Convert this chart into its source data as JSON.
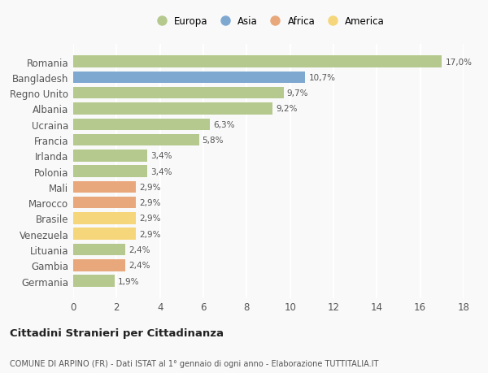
{
  "countries": [
    "Romania",
    "Bangladesh",
    "Regno Unito",
    "Albania",
    "Ucraina",
    "Francia",
    "Irlanda",
    "Polonia",
    "Mali",
    "Marocco",
    "Brasile",
    "Venezuela",
    "Lituania",
    "Gambia",
    "Germania"
  ],
  "values": [
    17.0,
    10.7,
    9.7,
    9.2,
    6.3,
    5.8,
    3.4,
    3.4,
    2.9,
    2.9,
    2.9,
    2.9,
    2.4,
    2.4,
    1.9
  ],
  "labels": [
    "17,0%",
    "10,7%",
    "9,7%",
    "9,2%",
    "6,3%",
    "5,8%",
    "3,4%",
    "3,4%",
    "2,9%",
    "2,9%",
    "2,9%",
    "2,9%",
    "2,4%",
    "2,4%",
    "1,9%"
  ],
  "regions": [
    "Europa",
    "Asia",
    "Europa",
    "Europa",
    "Europa",
    "Europa",
    "Europa",
    "Europa",
    "Africa",
    "Africa",
    "America",
    "America",
    "Europa",
    "Africa",
    "Europa"
  ],
  "colors": {
    "Europa": "#b5c98e",
    "Asia": "#7fa8d1",
    "Africa": "#e8a87c",
    "America": "#f5d67a"
  },
  "legend_order": [
    "Europa",
    "Asia",
    "Africa",
    "America"
  ],
  "legend_colors": [
    "#b5c98e",
    "#7fa8d1",
    "#e8a87c",
    "#f5d67a"
  ],
  "title": "Cittadini Stranieri per Cittadinanza",
  "subtitle": "COMUNE DI ARPINO (FR) - Dati ISTAT al 1° gennaio di ogni anno - Elaborazione TUTTITALIA.IT",
  "xlim": [
    0,
    18
  ],
  "xticks": [
    0,
    2,
    4,
    6,
    8,
    10,
    12,
    14,
    16,
    18
  ],
  "background_color": "#f9f9f9",
  "grid_color": "#ffffff",
  "bar_height": 0.75
}
